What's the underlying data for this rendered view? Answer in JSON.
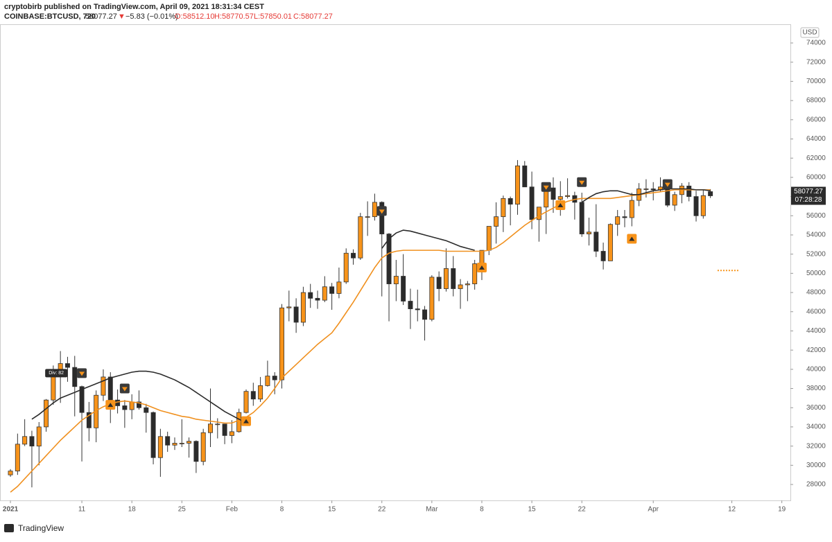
{
  "header": {
    "publisher": "cryptobirb published on TradingView.com, April 09, 2021 18:31:34 CEST",
    "symbol": "COINBASE:BTCUSD, 720",
    "last": "58077.27",
    "arrow": "▼",
    "change": "−5.83 (−0.01%)",
    "o": "O:58512.10",
    "h": "H:58770.57",
    "l": "L:57850.01",
    "c": "C:58077.27"
  },
  "footer": {
    "brand": "TradingView"
  },
  "chart_data": {
    "type": "candlestick",
    "currency": "USD",
    "x": [
      0,
      1,
      2,
      3,
      4,
      5,
      6,
      7,
      8,
      9,
      10,
      11,
      12,
      13,
      14,
      15,
      16,
      17,
      18,
      19,
      20,
      21,
      22,
      23,
      24,
      25,
      26,
      27,
      28,
      29,
      30,
      31,
      32,
      33,
      34,
      35,
      36,
      37,
      38,
      39,
      40,
      41,
      42,
      43,
      44,
      45,
      46,
      47,
      48,
      49,
      50,
      51,
      52,
      53,
      54,
      55,
      56,
      57,
      58,
      59,
      60,
      61,
      62,
      63,
      64,
      65,
      66,
      67,
      68,
      69,
      70,
      71,
      72,
      73,
      74,
      75,
      76,
      77,
      78,
      79,
      80,
      81,
      82,
      83,
      84,
      85,
      86,
      87,
      88,
      89,
      90,
      91,
      92,
      93,
      94,
      95,
      96,
      97,
      98
    ],
    "open": [
      29000,
      29400,
      32200,
      33000,
      32000,
      34000,
      36800,
      39400,
      40600,
      40200,
      38200,
      35500,
      33900,
      37300,
      39200,
      36800,
      36200,
      35800,
      36600,
      36000,
      35500,
      30800,
      33000,
      32100,
      32300,
      32300,
      32500,
      30400,
      33400,
      34300,
      34300,
      33100,
      33500,
      35500,
      37700,
      36900,
      38300,
      39300,
      38900,
      46400,
      46500,
      44900,
      48000,
      47400,
      47200,
      48600,
      47900,
      49100,
      52100,
      51600,
      55900,
      55900,
      57400,
      54100,
      48900,
      49700,
      47100,
      46300,
      46200,
      45200,
      49600,
      48400,
      50500,
      48400,
      48800,
      48900,
      51000,
      52400,
      54900,
      55900,
      57800,
      57200,
      61200,
      59000,
      55600,
      56900,
      58900,
      57700,
      58000,
      58100,
      57400,
      54100,
      54300,
      52300,
      51300,
      55100,
      55900,
      55800,
      57600,
      58800,
      58800,
      58700,
      59000,
      57100,
      58200,
      59100,
      58000,
      56000,
      58512.1
    ],
    "high": [
      29600,
      33300,
      34800,
      33600,
      34500,
      36900,
      40400,
      41900,
      41300,
      41400,
      38300,
      36600,
      37800,
      40000,
      39700,
      37900,
      36800,
      37400,
      37800,
      36400,
      35600,
      33800,
      33500,
      32900,
      34800,
      32900,
      32600,
      33800,
      38000,
      34900,
      34300,
      34700,
      35900,
      37900,
      38600,
      39200,
      40900,
      39700,
      46800,
      48200,
      47400,
      48600,
      48900,
      48200,
      49700,
      49000,
      50600,
      52600,
      52500,
      56300,
      57500,
      58300,
      57500,
      54200,
      51400,
      52000,
      48400,
      48300,
      46600,
      49800,
      50200,
      52600,
      51800,
      49400,
      49200,
      51400,
      52400,
      54900,
      57400,
      58100,
      58000,
      61800,
      61700,
      60600,
      56900,
      59000,
      60000,
      59600,
      59900,
      58500,
      58400,
      55800,
      57200,
      53200,
      55200,
      56600,
      56600,
      58400,
      59400,
      59800,
      59500,
      60000,
      59700,
      58500,
      59400,
      59500,
      58600,
      58700,
      58770.57
    ],
    "low": [
      28800,
      29000,
      32000,
      27700,
      30000,
      33500,
      36300,
      36500,
      38700,
      35100,
      30400,
      32500,
      32400,
      36700,
      34400,
      35400,
      33900,
      34800,
      35800,
      33400,
      30100,
      28800,
      31400,
      31600,
      31900,
      30800,
      29200,
      30000,
      31900,
      32800,
      32200,
      32300,
      33400,
      35400,
      36200,
      36600,
      38200,
      37400,
      38000,
      45000,
      43800,
      44500,
      46400,
      46300,
      47000,
      46200,
      47400,
      48900,
      50900,
      51400,
      53900,
      55500,
      47600,
      45000,
      47100,
      46700,
      44200,
      45000,
      43000,
      45000,
      47100,
      48100,
      47600,
      46300,
      47100,
      48300,
      49300,
      51900,
      53100,
      54300,
      55000,
      56100,
      59000,
      54600,
      53300,
      54100,
      56300,
      56000,
      57800,
      55600,
      53800,
      52900,
      51700,
      50400,
      51300,
      53900,
      54800,
      54900,
      57000,
      57900,
      57600,
      58500,
      56900,
      56500,
      57300,
      57500,
      55400,
      55700,
      57850.01
    ],
    "close": [
      29400,
      32200,
      33000,
      32000,
      34000,
      36800,
      39400,
      40600,
      40200,
      38200,
      35500,
      33900,
      37300,
      39200,
      36800,
      36200,
      35800,
      36600,
      36000,
      35500,
      30800,
      33000,
      32100,
      32300,
      32300,
      32500,
      30400,
      33400,
      34300,
      34300,
      33100,
      33500,
      35500,
      37700,
      36900,
      38300,
      39300,
      38900,
      46400,
      46500,
      44900,
      48000,
      47400,
      47200,
      48600,
      47900,
      49100,
      52100,
      51600,
      55900,
      55900,
      57400,
      54100,
      48900,
      49700,
      47100,
      46300,
      46200,
      45200,
      49600,
      48400,
      50500,
      48400,
      48800,
      48900,
      51000,
      52400,
      54900,
      55900,
      57800,
      57200,
      61200,
      59000,
      55600,
      56900,
      58900,
      57700,
      58000,
      58100,
      57400,
      54100,
      54300,
      52300,
      51300,
      55100,
      55900,
      55800,
      57600,
      58800,
      58800,
      58700,
      59000,
      57100,
      58200,
      59100,
      58000,
      56000,
      58100,
      58077.27
    ],
    "up_color": "#f7931a",
    "down_color": "#2b2b2b",
    "series": [
      {
        "color": "#f0901e",
        "values": [
          27200,
          27800,
          28600,
          29400,
          30200,
          31000,
          31800,
          32600,
          33300,
          34000,
          34700,
          35200,
          35700,
          36100,
          36400,
          36600,
          36700,
          36600,
          36500,
          36300,
          36000,
          35700,
          35500,
          35300,
          35100,
          35000,
          34800,
          34700,
          34600,
          34500,
          34400,
          34400,
          34700,
          35000,
          35500,
          36200,
          37000,
          38000,
          39100,
          39800,
          40500,
          41200,
          41900,
          42600,
          43200,
          43800,
          44800,
          45900,
          47000,
          48200,
          49400,
          50600,
          51600,
          52100,
          52300,
          52400,
          52400,
          52400,
          52400,
          52400,
          52400,
          52300,
          52300,
          52300,
          52300,
          52300,
          52300,
          52400,
          52700,
          53200,
          53800,
          54400,
          55000,
          55500,
          56000,
          56400,
          56800,
          57200,
          57500,
          57700,
          57800,
          57800,
          57800,
          57800,
          57800,
          57900,
          58000,
          58100,
          58200,
          58300,
          58400,
          58500,
          58600,
          58700,
          58700,
          58700,
          58700,
          58700,
          58700
        ]
      },
      {
        "color": "#2b2b2b",
        "values": [
          null,
          null,
          null,
          34800,
          35300,
          35900,
          36500,
          37000,
          37300,
          37600,
          37900,
          38200,
          38500,
          38800,
          39100,
          39300,
          39500,
          39700,
          39800,
          39800,
          39700,
          39500,
          39200,
          38900,
          38500,
          38100,
          37600,
          37100,
          36600,
          36100,
          35600,
          35200,
          34800,
          34500,
          null,
          null,
          null,
          null,
          null,
          null,
          null,
          null,
          null,
          null,
          null,
          null,
          null,
          null,
          null,
          null,
          null,
          null,
          52600,
          53600,
          54200,
          54500,
          54400,
          54200,
          54000,
          53800,
          53600,
          53400,
          53100,
          52800,
          52600,
          52400,
          null,
          null,
          null,
          null,
          null,
          null,
          null,
          null,
          null,
          null,
          null,
          null,
          null,
          null,
          57400,
          57900,
          58300,
          58500,
          58600,
          58600,
          58400,
          58200,
          58200,
          58400,
          58600,
          58700,
          58800,
          58800,
          58800,
          58800,
          58700,
          58700,
          58600
        ]
      }
    ],
    "signals_down": {
      "color": "#3a3a3a",
      "x": [
        10,
        16,
        52,
        75,
        80,
        92
      ],
      "y": [
        39600,
        38000,
        56500,
        59000,
        59500,
        59300
      ]
    },
    "signals_up": {
      "color": "#f7931a",
      "x": [
        14,
        33,
        66,
        77,
        87
      ],
      "y": [
        36300,
        34600,
        50600,
        57100,
        53600
      ]
    },
    "annotation": {
      "text": "Div: 82",
      "x": 7,
      "y": 39600
    },
    "target": {
      "color": "#f7931a",
      "x": [
        99,
        102
      ],
      "y": 50300
    },
    "last_price_label": "58077.27",
    "countdown": "07:28:28",
    "xlim": [
      -1.46,
      109.2
    ],
    "xticks": [
      {
        "value": 0,
        "label": "2021"
      },
      {
        "value": 10,
        "label": "11"
      },
      {
        "value": 17,
        "label": "18"
      },
      {
        "value": 24,
        "label": "25"
      },
      {
        "value": 31,
        "label": "Feb"
      },
      {
        "value": 38,
        "label": "8"
      },
      {
        "value": 45,
        "label": "15"
      },
      {
        "value": 52,
        "label": "22"
      },
      {
        "value": 59,
        "label": "Mar"
      },
      {
        "value": 66,
        "label": "8"
      },
      {
        "value": 73,
        "label": "15"
      },
      {
        "value": 80,
        "label": "22"
      },
      {
        "value": 90,
        "label": "Apr"
      },
      {
        "value": 101,
        "label": "12"
      },
      {
        "value": 108,
        "label": "19"
      }
    ],
    "ylim": [
      26340,
      75950
    ],
    "yticks": [
      28000,
      30000,
      32000,
      34000,
      36000,
      38000,
      40000,
      42000,
      44000,
      46000,
      48000,
      50000,
      52000,
      54000,
      56000,
      58000,
      60000,
      62000,
      64000,
      66000,
      68000,
      70000,
      72000,
      74000
    ]
  }
}
